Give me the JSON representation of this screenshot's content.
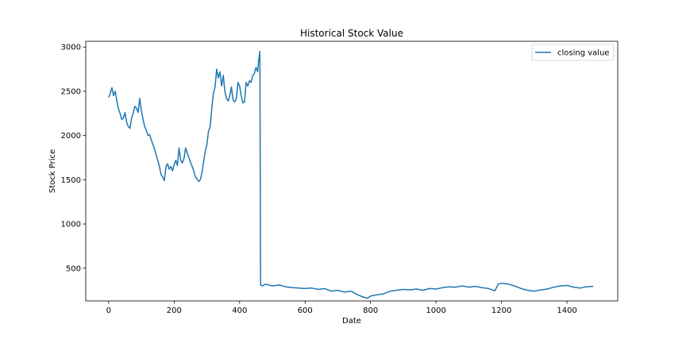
{
  "chart_data": {
    "type": "line",
    "title": "Historical Stock Value",
    "xlabel": "Date",
    "ylabel": "Stock Price",
    "xlim": [
      -70,
      1555
    ],
    "ylim": [
      130,
      3065
    ],
    "xticks": [
      0,
      200,
      400,
      600,
      800,
      1000,
      1200,
      1400
    ],
    "yticks": [
      500,
      1000,
      1500,
      2000,
      2500,
      3000
    ],
    "legend_position": "top-right",
    "grid": false,
    "series": [
      {
        "name": "closing value",
        "color": "#1f77b4",
        "x": [
          0,
          5,
          10,
          15,
          20,
          25,
          30,
          35,
          40,
          45,
          50,
          55,
          60,
          65,
          70,
          75,
          80,
          85,
          90,
          95,
          100,
          105,
          110,
          115,
          120,
          125,
          130,
          135,
          140,
          145,
          150,
          155,
          160,
          165,
          170,
          175,
          180,
          185,
          190,
          195,
          200,
          205,
          210,
          215,
          220,
          225,
          230,
          235,
          240,
          245,
          250,
          255,
          260,
          265,
          270,
          275,
          280,
          285,
          290,
          295,
          300,
          305,
          310,
          315,
          320,
          325,
          330,
          335,
          340,
          345,
          350,
          355,
          360,
          365,
          370,
          375,
          380,
          385,
          390,
          395,
          400,
          405,
          410,
          415,
          420,
          425,
          430,
          435,
          440,
          445,
          450,
          455,
          458,
          462,
          464,
          470,
          480,
          500,
          520,
          540,
          560,
          580,
          600,
          620,
          640,
          660,
          680,
          700,
          720,
          740,
          760,
          780,
          790,
          800,
          820,
          840,
          860,
          880,
          900,
          920,
          940,
          960,
          980,
          1000,
          1020,
          1040,
          1060,
          1080,
          1100,
          1120,
          1140,
          1160,
          1180,
          1190,
          1200,
          1220,
          1240,
          1260,
          1280,
          1300,
          1320,
          1340,
          1360,
          1380,
          1400,
          1420,
          1440,
          1460,
          1480
        ],
        "values": [
          2430,
          2480,
          2540,
          2450,
          2500,
          2390,
          2300,
          2250,
          2180,
          2200,
          2260,
          2150,
          2100,
          2080,
          2200,
          2250,
          2330,
          2310,
          2260,
          2420,
          2280,
          2180,
          2100,
          2060,
          2000,
          2010,
          1950,
          1900,
          1850,
          1780,
          1720,
          1650,
          1560,
          1530,
          1490,
          1650,
          1680,
          1620,
          1650,
          1600,
          1670,
          1720,
          1660,
          1860,
          1720,
          1690,
          1740,
          1860,
          1800,
          1750,
          1700,
          1650,
          1600,
          1530,
          1510,
          1480,
          1500,
          1580,
          1700,
          1820,
          1900,
          2050,
          2100,
          2300,
          2480,
          2550,
          2750,
          2650,
          2720,
          2560,
          2680,
          2500,
          2420,
          2390,
          2450,
          2550,
          2400,
          2380,
          2420,
          2600,
          2560,
          2450,
          2370,
          2380,
          2600,
          2560,
          2620,
          2600,
          2680,
          2700,
          2770,
          2720,
          2840,
          2950,
          310,
          300,
          320,
          300,
          310,
          290,
          280,
          275,
          270,
          275,
          260,
          270,
          240,
          250,
          230,
          240,
          200,
          170,
          160,
          185,
          200,
          210,
          240,
          250,
          260,
          255,
          265,
          250,
          270,
          265,
          280,
          290,
          285,
          300,
          285,
          295,
          280,
          270,
          245,
          320,
          330,
          320,
          300,
          270,
          250,
          240,
          255,
          265,
          285,
          300,
          305,
          285,
          275,
          290,
          295
        ]
      }
    ]
  }
}
